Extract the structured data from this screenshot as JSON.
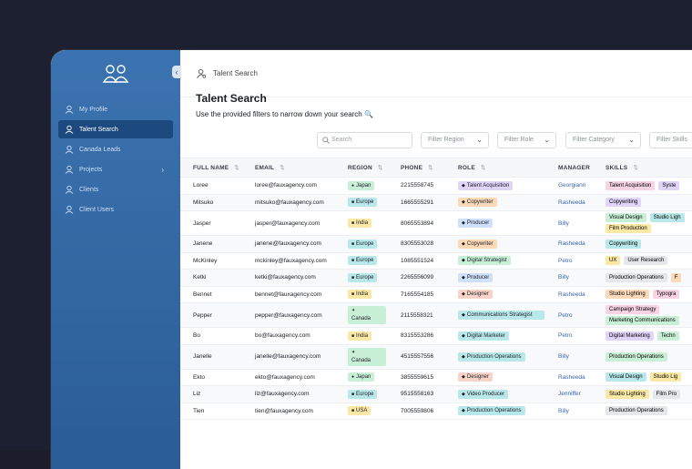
{
  "breadcrumb": "Talent Search",
  "title": "Talent Search",
  "subtitle": "Use the provided filters to narrow down your search 🔍",
  "sidebar": {
    "items": [
      {
        "label": "My Profile",
        "icon": "user-icon"
      },
      {
        "label": "Talent Search",
        "icon": "user-search-icon"
      },
      {
        "label": "Canada Leads",
        "icon": "users-icon"
      },
      {
        "label": "Projects",
        "icon": "kanban-icon"
      },
      {
        "label": "Clients",
        "icon": "briefcase-icon"
      },
      {
        "label": "Client Users",
        "icon": "clipboard-icon"
      }
    ]
  },
  "filters": {
    "search_placeholder": "Search",
    "region": "Filter Region",
    "role": "Filter Role",
    "category": "Filter Category",
    "skills": "Filter Skills"
  },
  "columns": [
    "FULL NAME",
    "EMAIL",
    "REGION",
    "PHONE",
    "ROLE",
    "MANAGER",
    "SKILLS"
  ],
  "colors": {
    "japan": "#c8f0d6",
    "europe": "#b9e8ea",
    "india": "#fbe8a6",
    "canada": "#c8f0d6",
    "usa": "#fbe8a6",
    "talent_acquisition": "#e0d4f8",
    "copywriter": "#fcd9b8",
    "producer": "#cfe0fb",
    "digital_strategist": "#c8f0d6",
    "designer": "#f8d3c8",
    "communications_strategist": "#b9e8ea",
    "digital_marketer": "#b9e8ea",
    "production_operations": "#b9e8ea",
    "video_producer": "#b9e8ea"
  },
  "rows": [
    {
      "name": "Loree",
      "email": "loree@fauxagency.com",
      "region": "Japan",
      "region_class": "japan",
      "phone": "2215558745",
      "role": "Talent Acquisition",
      "role_class": "talent_acquisition",
      "manager": "Georgiann",
      "skills": [
        [
          "Talent Acquisition",
          "Syste"
        ]
      ]
    },
    {
      "name": "Mitsuko",
      "email": "mitsuko@fauxagency.com",
      "region": "Europe",
      "region_class": "europe",
      "phone": "1665555291",
      "role": "Copywriter",
      "role_class": "copywriter",
      "manager": "Rasheeda",
      "skills": [
        [
          "Copywriting"
        ]
      ]
    },
    {
      "name": "Jasper",
      "email": "jasper@fauxagency.com",
      "region": "India",
      "region_class": "india",
      "phone": "8065553894",
      "role": "Producer",
      "role_class": "producer",
      "manager": "Billy",
      "skills": [
        [
          "Visual Design",
          "Studio Ligh"
        ],
        [
          "Film Production"
        ]
      ]
    },
    {
      "name": "Janene",
      "email": "janene@fauxagency.com",
      "region": "Europe",
      "region_class": "europe",
      "phone": "8305553028",
      "role": "Copywriter",
      "role_class": "copywriter",
      "manager": "Rasheeda",
      "skills": [
        [
          "Copywriting"
        ]
      ]
    },
    {
      "name": "McKinley",
      "email": "mckinley@fauxagency.com",
      "region": "Europe",
      "region_class": "europe",
      "phone": "1085551524",
      "role": "Digital Strategist",
      "role_class": "digital_strategist",
      "manager": "Petro",
      "skills": [
        [
          "UX",
          "User Research"
        ]
      ]
    },
    {
      "name": "Ketki",
      "email": "ketki@fauxagency.com",
      "region": "Europe",
      "region_class": "europe",
      "phone": "2265556099",
      "role": "Producer",
      "role_class": "producer",
      "manager": "Billy",
      "skills": [
        [
          "Production Operations",
          "F"
        ]
      ]
    },
    {
      "name": "Bennet",
      "email": "bennet@fauxagency.com",
      "region": "India",
      "region_class": "india",
      "phone": "7165554185",
      "role": "Designer",
      "role_class": "designer",
      "manager": "Rasheeda",
      "skills": [
        [
          "Studio Lighting",
          "Typogra"
        ]
      ]
    },
    {
      "name": "Pepper",
      "email": "pepper@fauxagency.com",
      "region": "Canada",
      "region_class": "canada",
      "phone": "2115558321",
      "role": "Communications Strategist",
      "role_class": "communications_strategist",
      "manager": "Petro",
      "skills": [
        [
          "Campaign Strategy"
        ],
        [
          "Marketing Communications"
        ]
      ]
    },
    {
      "name": "Bo",
      "email": "bo@fauxagency.com",
      "region": "India",
      "region_class": "india",
      "phone": "8315553286",
      "role": "Digital Marketer",
      "role_class": "digital_marketer",
      "manager": "Petro",
      "skills": [
        [
          "Digital Marketing",
          "Techn"
        ]
      ]
    },
    {
      "name": "Janelle",
      "email": "janelle@fauxagency.com",
      "region": "Canada",
      "region_class": "canada",
      "phone": "4515557556",
      "role": "Production Operations",
      "role_class": "production_operations",
      "manager": "Billy",
      "skills": [
        [
          "Production Operations"
        ]
      ]
    },
    {
      "name": "Ekto",
      "email": "ekto@fauxagency.com",
      "region": "Japan",
      "region_class": "japan",
      "phone": "3855559615",
      "role": "Designer",
      "role_class": "designer",
      "manager": "Rasheeda",
      "skills": [
        [
          "Visual Design",
          "Studio Lig"
        ]
      ]
    },
    {
      "name": "Liz",
      "email": "liz@fauxagency.com",
      "region": "Europe",
      "region_class": "europe",
      "phone": "9515558163",
      "role": "Video Producer",
      "role_class": "video_producer",
      "manager": "Jenniffer",
      "skills": [
        [
          "Studio Lighting",
          "Film Pro"
        ]
      ]
    },
    {
      "name": "Tien",
      "email": "tien@fauxagency.com",
      "region": "USA",
      "region_class": "usa",
      "phone": "7005559806",
      "role": "Production Operations",
      "role_class": "production_operations",
      "manager": "Billy",
      "skills": [
        [
          "Production Operations"
        ]
      ]
    }
  ]
}
